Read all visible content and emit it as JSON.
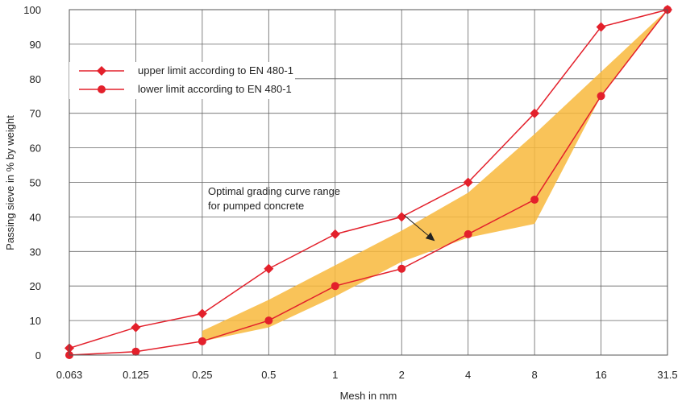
{
  "chart_data": {
    "type": "line",
    "title": "",
    "xlabel": "Mesh in mm",
    "ylabel": "Passing sieve in % by weight",
    "categories": [
      "0.063",
      "0.125",
      "0.25",
      "0.5",
      "1",
      "2",
      "4",
      "8",
      "16",
      "31.5"
    ],
    "ylim": [
      0,
      100
    ],
    "yticks": [
      "0",
      "10",
      "20",
      "30",
      "40",
      "50",
      "60",
      "70",
      "80",
      "90",
      "100"
    ],
    "grid": true,
    "legend_position": "top-left",
    "series": [
      {
        "name": "upper limit according to EN 480-1",
        "marker": "diamond",
        "color": "#e3202b",
        "values": [
          2,
          8,
          12,
          25,
          35,
          40,
          50,
          70,
          95,
          100
        ]
      },
      {
        "name": "lower limit according to EN 480-1",
        "marker": "circle",
        "color": "#e3202b",
        "values": [
          0,
          1,
          4,
          10,
          20,
          25,
          35,
          45,
          75,
          100
        ]
      }
    ],
    "optimal_band": {
      "color": "#f8b83c",
      "upper": [
        [
          2,
          7
        ],
        [
          3,
          16
        ],
        [
          4,
          26
        ],
        [
          5,
          36
        ],
        [
          6,
          47
        ],
        [
          7,
          64
        ],
        [
          8,
          82
        ],
        [
          9,
          100
        ]
      ],
      "lower": [
        [
          2,
          4
        ],
        [
          3,
          8
        ],
        [
          4,
          17
        ],
        [
          5,
          27
        ],
        [
          6,
          34
        ],
        [
          7,
          38
        ],
        [
          8,
          75
        ],
        [
          9,
          100
        ]
      ]
    },
    "annotation": {
      "lines": [
        "Optimal grading curve range",
        "for pumped concrete"
      ],
      "arrow_to": [
        5.5,
        33
      ]
    }
  }
}
